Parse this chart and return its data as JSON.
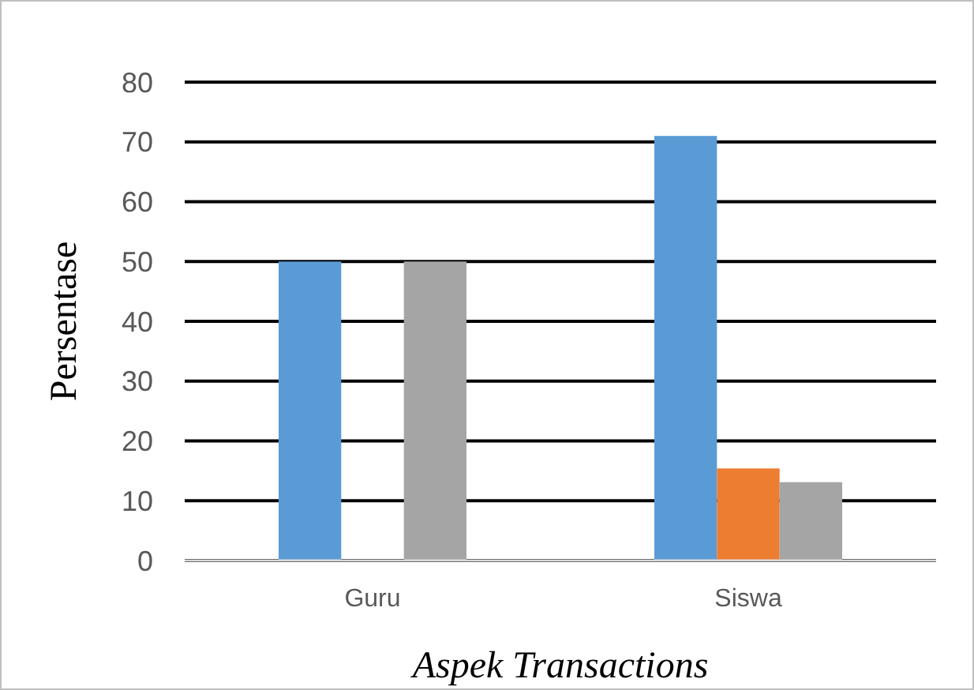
{
  "chart_data": {
    "type": "bar",
    "xlabel": "Aspek Transactions",
    "ylabel": "Persentase",
    "categories": [
      "Guru",
      "Siswa"
    ],
    "series": [
      {
        "color": "#5b9bd5",
        "values": [
          50,
          71
        ]
      },
      {
        "color": "#ed7d31",
        "values": [
          0,
          15.4
        ]
      },
      {
        "color": "#a5a5a5",
        "values": [
          50,
          13.1
        ]
      }
    ],
    "ylim": [
      0,
      80
    ],
    "yticks": [
      0,
      10,
      20,
      30,
      40,
      50,
      60,
      70,
      80
    ],
    "grid": "y"
  }
}
